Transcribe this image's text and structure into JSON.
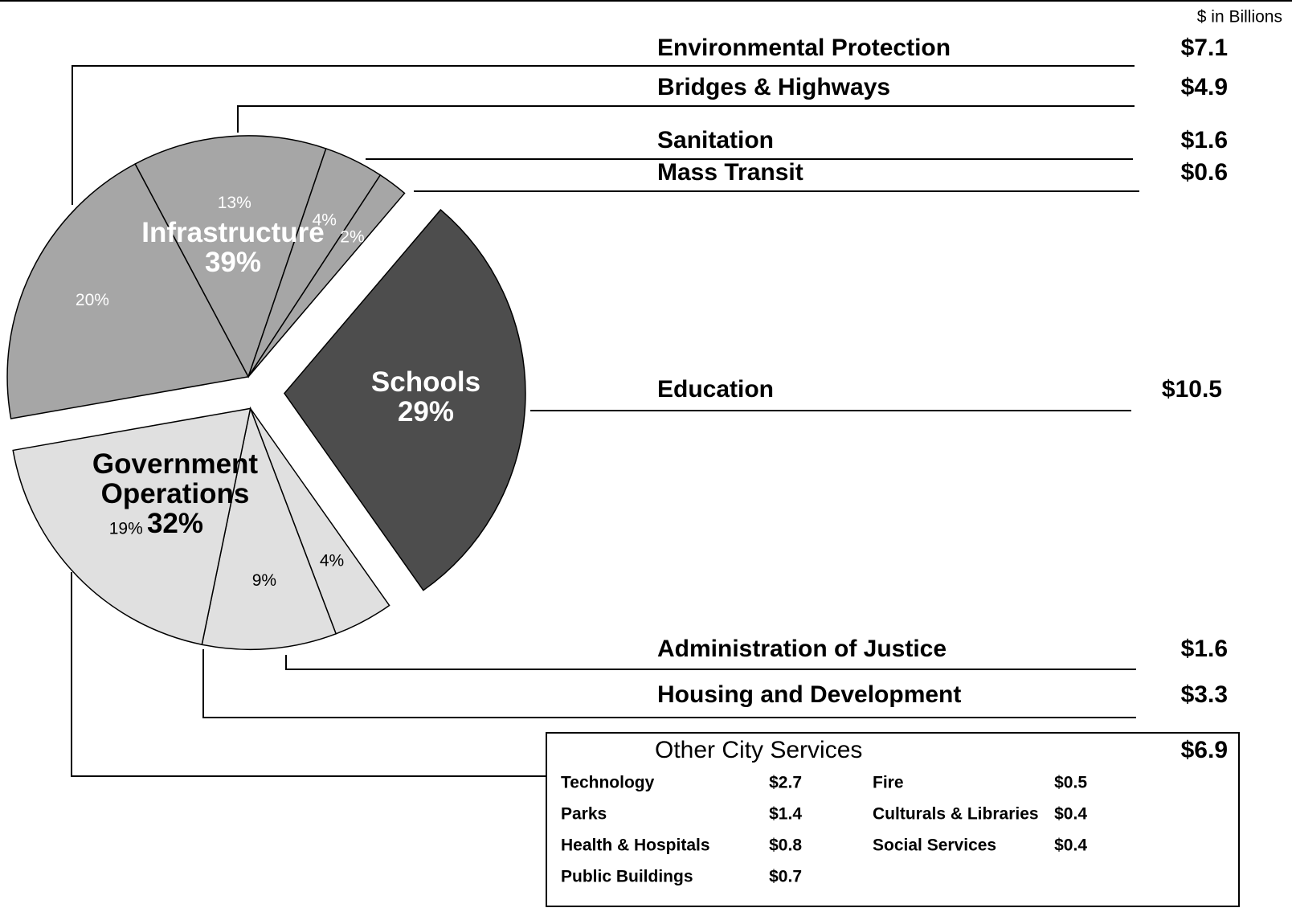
{
  "chart_data": {
    "type": "pie",
    "unit_note": "$ in Billions",
    "groups": [
      {
        "name": "Infrastructure",
        "color": "#a6a6a6",
        "total": 39,
        "total_label": "39%",
        "categories": [
          "Environmental Protection",
          "Bridges & Highways",
          "Sanitation",
          "Mass Transit"
        ],
        "values": [
          20,
          13,
          4,
          2
        ],
        "value_labels": [
          "20%",
          "13%",
          "4%",
          "2%"
        ],
        "amounts": [
          7.1,
          4.9,
          1.6,
          0.6
        ],
        "amount_labels": [
          "$7.1",
          "$4.9",
          "$1.6",
          "$0.6"
        ]
      },
      {
        "name": "Schools",
        "color": "#4d4d4d",
        "categories": [
          "Education"
        ],
        "values": [
          29
        ],
        "value_labels": [
          "29%"
        ],
        "amounts": [
          10.5
        ],
        "amount_labels": [
          "$10.5"
        ]
      },
      {
        "name": "Government Operations",
        "color": "#e0e0e0",
        "total": 32,
        "total_label": "32%",
        "categories": [
          "Administration of Justice",
          "Housing and Development",
          "Other City Services"
        ],
        "values": [
          4,
          9,
          19
        ],
        "value_labels": [
          "4%",
          "9%",
          "19%"
        ],
        "amounts": [
          1.6,
          3.3,
          6.9
        ],
        "amount_labels": [
          "$1.6",
          "$3.3",
          "$6.9"
        ]
      }
    ],
    "other_breakdown": {
      "categories": [
        "Technology",
        "Parks",
        "Health & Hospitals",
        "Public Buildings",
        "Fire",
        "Culturals & Libraries",
        "Social Services"
      ],
      "values": [
        2.7,
        1.4,
        0.8,
        0.7,
        0.5,
        0.4,
        0.4
      ],
      "value_labels": [
        "$2.7",
        "$1.4",
        "$0.8",
        "$0.7",
        "$0.5",
        "$0.4",
        "$0.4"
      ]
    }
  }
}
